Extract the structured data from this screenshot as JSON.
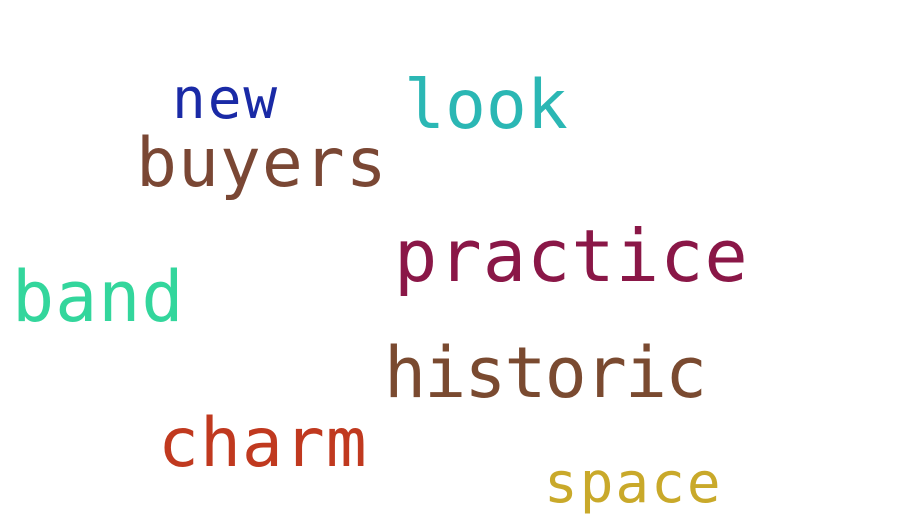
{
  "words": [
    {
      "id": "new",
      "text": "new",
      "color": "#1a2aa6"
    },
    {
      "id": "look",
      "text": "look",
      "color": "#2bb7b4"
    },
    {
      "id": "buyers",
      "text": "buyers",
      "color": "#7a4734"
    },
    {
      "id": "practice",
      "text": "practice",
      "color": "#8a1747"
    },
    {
      "id": "band",
      "text": "band",
      "color": "#33d69c"
    },
    {
      "id": "historic",
      "text": "historic",
      "color": "#7a4a30"
    },
    {
      "id": "charm",
      "text": "charm",
      "color": "#c0391f"
    },
    {
      "id": "space",
      "text": "space",
      "color": "#c9a92a"
    }
  ]
}
